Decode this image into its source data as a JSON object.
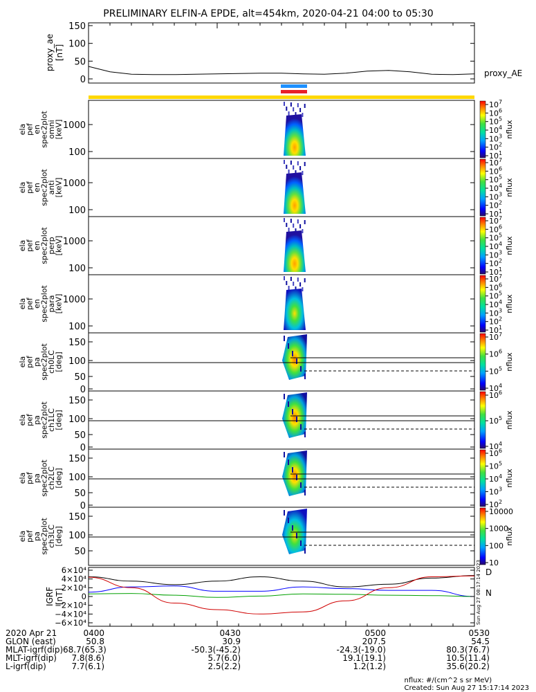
{
  "title": "PRELIMINARY ELFIN-A EPDE, alt=454km, 2020-04-21 04:00 to 05:30",
  "colors": {
    "bar_yellow": "#ffd700",
    "blue_bar": "#1e90ff",
    "red_bar": "#e8202a",
    "ae_line": "#000000",
    "grf_x": "#000000",
    "grf_y": "#0000ff",
    "grf_z": "#00a000",
    "grf_red": "#d00000"
  },
  "chart_data": [
    {
      "type": "line",
      "panel": "proxy_ae",
      "ylabel": "proxy_ae [nT]",
      "ylim": [
        0,
        150
      ],
      "yticks": [
        "150",
        "100",
        "50",
        "0"
      ],
      "series": [
        {
          "name": "proxy_AE",
          "x_min": [
            0,
            5,
            10,
            15,
            20,
            25,
            30,
            35,
            40,
            45,
            50,
            55,
            60,
            65,
            70,
            75,
            80,
            85,
            90
          ],
          "values": [
            35,
            20,
            13,
            12,
            12,
            13,
            14,
            15,
            16,
            16,
            14,
            13,
            16,
            22,
            24,
            20,
            13,
            12,
            14
          ]
        }
      ]
    },
    {
      "type": "heatmap",
      "panel": "en_spec2plot_omni",
      "ylabel": "ela pef en spec2plot omni [keV]",
      "yticks": [
        "1000",
        "100"
      ],
      "colorbar": {
        "label": "nflux",
        "ticks": [
          "10^7",
          "10^6",
          "10^5",
          "10^4",
          "10^3",
          "10^2",
          "10^1"
        ]
      }
    },
    {
      "type": "heatmap",
      "panel": "en_spec2plot_anti",
      "ylabel": "ela pef en spec2plot anti [keV]",
      "yticks": [
        "1000",
        "100"
      ],
      "colorbar": {
        "label": "nflux",
        "ticks": [
          "10^7",
          "10^6",
          "10^5",
          "10^4",
          "10^3",
          "10^2",
          "10^1"
        ]
      }
    },
    {
      "type": "heatmap",
      "panel": "en_spec2plot_perp",
      "ylabel": "ela pef en spec2plot perp [keV]",
      "yticks": [
        "1000",
        "100"
      ],
      "colorbar": {
        "label": "nflux",
        "ticks": [
          "10^7",
          "10^6",
          "10^5",
          "10^4",
          "10^3",
          "10^2",
          "10^1"
        ]
      }
    },
    {
      "type": "heatmap",
      "panel": "en_spec2plot_para",
      "ylabel": "ela pef en spec2plot para [keV]",
      "yticks": [
        "1000",
        "100"
      ],
      "colorbar": {
        "label": "nflux",
        "ticks": [
          "10^7",
          "10^6",
          "10^5",
          "10^4",
          "10^3",
          "10^2",
          "10^1"
        ]
      }
    },
    {
      "type": "heatmap",
      "panel": "pa_spec2plot_ch0LC",
      "ylabel": "ela pef pa spec2plot ch0LC [deg]",
      "yticks": [
        "150",
        "100",
        "50",
        "0"
      ],
      "colorbar": {
        "label": "nflux",
        "ticks": [
          "10^7",
          "10^6",
          "10^5",
          "10^4"
        ]
      }
    },
    {
      "type": "heatmap",
      "panel": "pa_spec2plot_ch1LC",
      "ylabel": "ela pef pa spec2plot ch1LC [deg]",
      "yticks": [
        "150",
        "100",
        "50",
        "0"
      ],
      "colorbar": {
        "label": "nflux",
        "ticks": [
          "10^6",
          "10^5",
          "10^4"
        ]
      }
    },
    {
      "type": "heatmap",
      "panel": "pa_spec2plot_ch2LC",
      "ylabel": "ela pef pa spec2plot ch2LC [deg]",
      "yticks": [
        "150",
        "100",
        "50",
        "0"
      ],
      "colorbar": {
        "label": "nflux",
        "ticks": [
          "10^6",
          "10^5",
          "10^4",
          "10^3",
          "10^2"
        ]
      }
    },
    {
      "type": "heatmap",
      "panel": "pa_spec2plot_ch3LC",
      "ylabel": "ela pef pa spec2plot ch3LC [deg]",
      "yticks": [
        "150",
        "100",
        "50"
      ],
      "colorbar": {
        "label": "nflux",
        "ticks": [
          "10000",
          "1000",
          "100",
          "10"
        ]
      }
    },
    {
      "type": "line",
      "panel": "IGRF",
      "ylabel": "IGRF [nT]",
      "ylim": [
        -60000,
        60000
      ],
      "yticks": [
        "6×10⁴",
        "4×10⁴",
        "2×10⁴",
        "0",
        "−2×10⁴",
        "−4×10⁴",
        "−6×10⁴"
      ],
      "legend": [
        "D",
        "N"
      ],
      "series": [
        {
          "x_min": [
            0,
            10,
            20,
            30,
            40,
            50,
            60,
            70,
            80,
            90
          ],
          "values": [
            45000,
            35000,
            27000,
            35000,
            45000,
            35000,
            22000,
            28000,
            42000,
            48000
          ]
        },
        {
          "x_min": [
            0,
            10,
            20,
            30,
            40,
            50,
            60,
            70,
            80,
            90
          ],
          "values": [
            10000,
            22000,
            24000,
            12000,
            12000,
            22000,
            18000,
            14000,
            14000,
            0
          ]
        },
        {
          "x_min": [
            0,
            10,
            20,
            30,
            40,
            50,
            60,
            70,
            80,
            90
          ],
          "values": [
            6000,
            7000,
            3000,
            -2000,
            1000,
            6000,
            5000,
            3000,
            2000,
            0
          ]
        },
        {
          "x_min": [
            0,
            10,
            20,
            30,
            40,
            50,
            60,
            70,
            80,
            90
          ],
          "values": [
            44000,
            20000,
            -15000,
            -30000,
            -40000,
            -35000,
            -10000,
            20000,
            45000,
            47000
          ]
        }
      ]
    }
  ],
  "side_text": "Sun Aug 27 08:17:14 2023",
  "footer": {
    "rows": [
      {
        "label": "2020 Apr 21",
        "v": [
          "0400",
          "0430",
          "0500",
          "0530"
        ]
      },
      {
        "label": "GLON (east)",
        "v": [
          "50.8",
          "30.9",
          "207.5",
          "54.5"
        ]
      },
      {
        "label": "MLAT-igrf(dip)",
        "v": [
          "68.7(65.3)",
          "-50.3(-45.2)",
          "-24.3(-19.0)",
          "80.3(76.7)"
        ]
      },
      {
        "label": "MLT-igrf(dip)",
        "v": [
          "7.8(8.6)",
          "5.7(6.0)",
          "19.1(19.1)",
          "10.5(11.4)"
        ]
      },
      {
        "label": "L-igrf(dip)",
        "v": [
          "7.7(6.1)",
          "2.5(2.2)",
          "1.2(1.2)",
          "35.6(20.2)"
        ]
      }
    ],
    "units": "nflux: #/(cm^2 s sr MeV)",
    "created": "Created: Sun Aug 27 15:17:14 2023"
  }
}
